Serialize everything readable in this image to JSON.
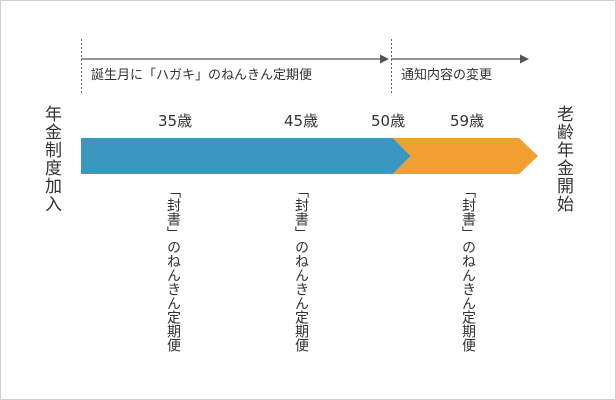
{
  "periods": {
    "first": "誕生月に「ハガキ」のねんきん定期便",
    "second": "通知内容の変更"
  },
  "ends": {
    "start": "年金制度加入",
    "end": "老齢年金開始"
  },
  "ages": [
    "35歳",
    "45歳",
    "50歳",
    "59歳"
  ],
  "mail_notes": [
    "「封書」のねんきん定期便",
    "「封書」のねんきん定期便",
    "「封書」のねんきん定期便"
  ],
  "colors": {
    "segment_blue": "#3a97bf",
    "segment_orange": "#f0a030",
    "line": "#555555",
    "text": "#333333"
  }
}
